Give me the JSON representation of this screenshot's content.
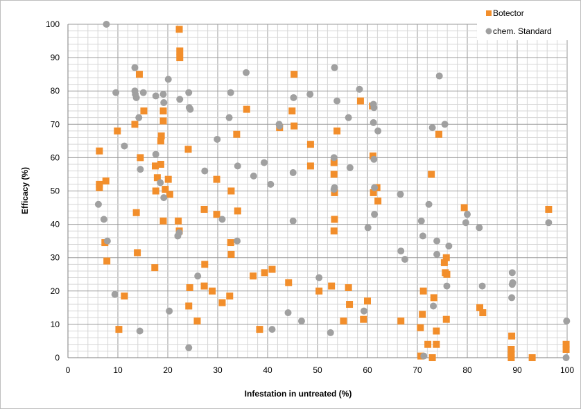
{
  "chart_data": {
    "type": "scatter",
    "title": "",
    "xlabel": "Infestation in untreated (%)",
    "ylabel": "Efficacy (%)",
    "xlim": [
      0,
      100
    ],
    "ylim": [
      0,
      100
    ],
    "x_ticks": [
      0,
      10,
      20,
      30,
      40,
      50,
      60,
      70,
      80,
      90,
      100
    ],
    "y_ticks": [
      0,
      10,
      20,
      30,
      40,
      50,
      60,
      70,
      80,
      90,
      100
    ],
    "grid": true,
    "legend_position": "top-right",
    "series": [
      {
        "name": "Botector",
        "marker": "square",
        "color": "#f28e2b",
        "points": [
          [
            6.3,
            62
          ],
          [
            6.3,
            52
          ],
          [
            6.3,
            51
          ],
          [
            7.6,
            53
          ],
          [
            7.4,
            34.5
          ],
          [
            7.8,
            29
          ],
          [
            9.9,
            68
          ],
          [
            10.2,
            8.5
          ],
          [
            11.3,
            18.5
          ],
          [
            13.4,
            70
          ],
          [
            13.7,
            43.5
          ],
          [
            13.9,
            31.5
          ],
          [
            14.3,
            85
          ],
          [
            14.5,
            60
          ],
          [
            15.2,
            74
          ],
          [
            17.5,
            57.5
          ],
          [
            17.4,
            27
          ],
          [
            17.6,
            50
          ],
          [
            17.9,
            54
          ],
          [
            18.6,
            65
          ],
          [
            18.6,
            58
          ],
          [
            18.7,
            66.5
          ],
          [
            19.1,
            74
          ],
          [
            19.1,
            71
          ],
          [
            19.1,
            41
          ],
          [
            19.5,
            50.5
          ],
          [
            20.1,
            53.5
          ],
          [
            20.4,
            49
          ],
          [
            22.3,
            98.5
          ],
          [
            22.4,
            92
          ],
          [
            22.4,
            90
          ],
          [
            22.1,
            41
          ],
          [
            22.3,
            38
          ],
          [
            24.1,
            62.5
          ],
          [
            24.4,
            21
          ],
          [
            24.2,
            15.5
          ],
          [
            25.9,
            11
          ],
          [
            27.3,
            44.5
          ],
          [
            27.4,
            28
          ],
          [
            27.3,
            21.5
          ],
          [
            28.9,
            20
          ],
          [
            29.8,
            53.5
          ],
          [
            29.8,
            43
          ],
          [
            30.9,
            16.5
          ],
          [
            32.4,
            18.5
          ],
          [
            32.7,
            50
          ],
          [
            32.6,
            34.5
          ],
          [
            32.7,
            31
          ],
          [
            33.8,
            67
          ],
          [
            34.0,
            44
          ],
          [
            35.8,
            74.5
          ],
          [
            37.1,
            24.5
          ],
          [
            38.4,
            8.5
          ],
          [
            39.4,
            25.5
          ],
          [
            40.9,
            26.5
          ],
          [
            42.4,
            69
          ],
          [
            44.2,
            22.5
          ],
          [
            44.9,
            74
          ],
          [
            45.3,
            85
          ],
          [
            45.3,
            69.5
          ],
          [
            48.6,
            64
          ],
          [
            48.6,
            57.5
          ],
          [
            50.3,
            20
          ],
          [
            52.8,
            21.5
          ],
          [
            53.3,
            58.5
          ],
          [
            53.3,
            55
          ],
          [
            53.4,
            49.5
          ],
          [
            53.4,
            41.5
          ],
          [
            53.3,
            38
          ],
          [
            53.9,
            68
          ],
          [
            55.2,
            11
          ],
          [
            56.2,
            21
          ],
          [
            56.4,
            16
          ],
          [
            58.6,
            77
          ],
          [
            59.2,
            11.5
          ],
          [
            60.0,
            17
          ],
          [
            61.0,
            75.5
          ],
          [
            61.1,
            60.5
          ],
          [
            61.2,
            49.5
          ],
          [
            61.9,
            51
          ],
          [
            62.1,
            47
          ],
          [
            66.7,
            11
          ],
          [
            70.6,
            9
          ],
          [
            70.7,
            0.5
          ],
          [
            71.0,
            13
          ],
          [
            71.2,
            20
          ],
          [
            72.1,
            4
          ],
          [
            72.8,
            55
          ],
          [
            73.0,
            0
          ],
          [
            73.3,
            18
          ],
          [
            73.8,
            4
          ],
          [
            73.8,
            8
          ],
          [
            74.3,
            67
          ],
          [
            75.4,
            28.5
          ],
          [
            75.8,
            30
          ],
          [
            75.6,
            25.5
          ],
          [
            75.9,
            25
          ],
          [
            75.8,
            11.5
          ],
          [
            79.4,
            45
          ],
          [
            82.5,
            15
          ],
          [
            83.1,
            13.5
          ],
          [
            88.9,
            6.5
          ],
          [
            88.8,
            2.5
          ],
          [
            88.8,
            1
          ],
          [
            88.8,
            0
          ],
          [
            93.0,
            0
          ],
          [
            96.3,
            44.5
          ],
          [
            99.8,
            4
          ],
          [
            99.8,
            2.5
          ]
        ]
      },
      {
        "name": "chem. Standard",
        "marker": "circle",
        "color": "#a0a0a0",
        "points": [
          [
            6.1,
            46
          ],
          [
            7.2,
            41.5
          ],
          [
            7.7,
            100
          ],
          [
            7.9,
            35
          ],
          [
            9.4,
            19
          ],
          [
            9.6,
            79.5
          ],
          [
            11.3,
            63.5
          ],
          [
            13.4,
            87
          ],
          [
            13.4,
            80
          ],
          [
            13.5,
            79
          ],
          [
            13.7,
            78
          ],
          [
            14.2,
            72
          ],
          [
            14.5,
            56.5
          ],
          [
            14.4,
            8
          ],
          [
            15.1,
            79.5
          ],
          [
            17.6,
            78.5
          ],
          [
            17.6,
            61
          ],
          [
            18.5,
            52.5
          ],
          [
            19.1,
            79
          ],
          [
            19.2,
            76.5
          ],
          [
            19.2,
            48
          ],
          [
            20.1,
            83.5
          ],
          [
            20.3,
            14
          ],
          [
            22.4,
            77.5
          ],
          [
            22.0,
            36.5
          ],
          [
            22.3,
            37.5
          ],
          [
            24.2,
            79.5
          ],
          [
            24.3,
            75
          ],
          [
            24.5,
            74.5
          ],
          [
            24.2,
            3
          ],
          [
            26.0,
            24.5
          ],
          [
            27.4,
            56
          ],
          [
            29.9,
            65.5
          ],
          [
            30.9,
            41.5
          ],
          [
            32.3,
            72
          ],
          [
            32.6,
            79.5
          ],
          [
            34.0,
            57.5
          ],
          [
            33.9,
            35
          ],
          [
            35.7,
            85.5
          ],
          [
            37.2,
            54.5
          ],
          [
            39.3,
            58.5
          ],
          [
            40.6,
            52
          ],
          [
            40.9,
            8.5
          ],
          [
            42.3,
            70
          ],
          [
            42.4,
            69.5
          ],
          [
            44.1,
            13.5
          ],
          [
            45.2,
            78
          ],
          [
            45.1,
            55.5
          ],
          [
            45.1,
            41
          ],
          [
            46.8,
            11
          ],
          [
            48.5,
            79
          ],
          [
            50.3,
            24
          ],
          [
            52.6,
            7.5
          ],
          [
            53.4,
            87
          ],
          [
            53.3,
            60
          ],
          [
            53.4,
            51
          ],
          [
            53.3,
            50.5
          ],
          [
            53.9,
            77
          ],
          [
            56.2,
            72
          ],
          [
            56.5,
            57
          ],
          [
            58.4,
            80.5
          ],
          [
            59.3,
            14
          ],
          [
            60.1,
            39
          ],
          [
            61.2,
            76
          ],
          [
            61.3,
            75
          ],
          [
            61.2,
            70.5
          ],
          [
            61.3,
            59.5
          ],
          [
            61.4,
            51
          ],
          [
            61.4,
            43
          ],
          [
            62.1,
            68
          ],
          [
            66.6,
            49
          ],
          [
            66.7,
            32
          ],
          [
            67.5,
            29.5
          ],
          [
            70.8,
            41
          ],
          [
            71.1,
            36.5
          ],
          [
            71.3,
            0.5
          ],
          [
            72.3,
            46
          ],
          [
            73.0,
            69
          ],
          [
            73.2,
            15.5
          ],
          [
            73.9,
            35
          ],
          [
            73.9,
            31
          ],
          [
            74.4,
            84.5
          ],
          [
            75.5,
            70
          ],
          [
            75.9,
            21.5
          ],
          [
            76.3,
            33.5
          ],
          [
            79.7,
            40.5
          ],
          [
            80.0,
            43
          ],
          [
            82.4,
            39
          ],
          [
            83.0,
            21.5
          ],
          [
            89.0,
            25.5
          ],
          [
            89.1,
            22.5
          ],
          [
            89.0,
            22
          ],
          [
            88.9,
            18
          ],
          [
            96.3,
            40.5
          ],
          [
            99.9,
            11
          ],
          [
            99.8,
            0
          ]
        ]
      }
    ]
  }
}
